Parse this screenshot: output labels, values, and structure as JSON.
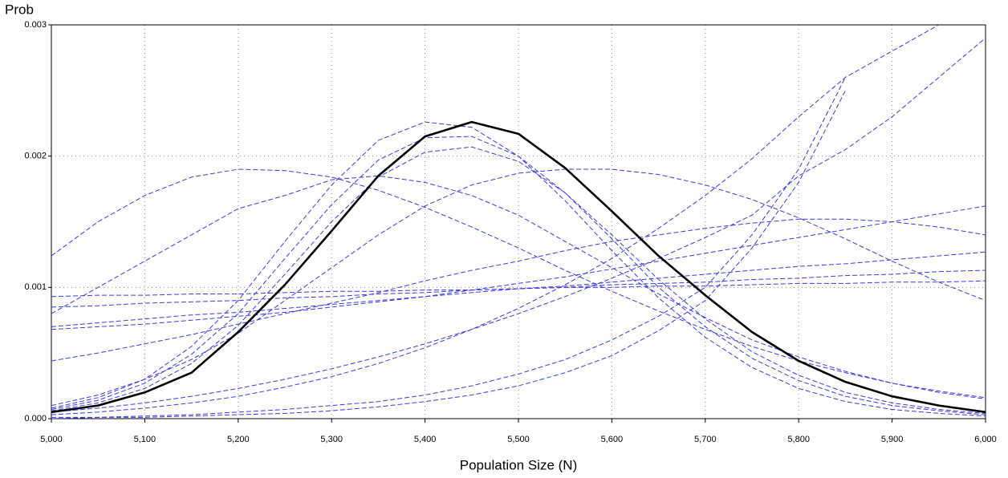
{
  "chart_data": {
    "type": "line",
    "ylabel": "Prob",
    "xlabel": "Population Size (N)",
    "x": [
      5000,
      5050,
      5100,
      5150,
      5200,
      5250,
      5300,
      5350,
      5400,
      5450,
      5500,
      5550,
      5600,
      5650,
      5700,
      5750,
      5800,
      5850,
      5900,
      5950,
      6000
    ],
    "xlim": [
      5000,
      6000
    ],
    "xticks": [
      {
        "value": 5000,
        "label": "5,000"
      },
      {
        "value": 5100,
        "label": "5,100"
      },
      {
        "value": 5200,
        "label": "5,200"
      },
      {
        "value": 5300,
        "label": "5,300"
      },
      {
        "value": 5400,
        "label": "5,400"
      },
      {
        "value": 5500,
        "label": "5,500"
      },
      {
        "value": 5600,
        "label": "5,600"
      },
      {
        "value": 5700,
        "label": "5,700"
      },
      {
        "value": 5800,
        "label": "5,800"
      },
      {
        "value": 5900,
        "label": "5,900"
      },
      {
        "value": 6000,
        "label": "6,000"
      }
    ],
    "ylim": [
      0,
      0.003
    ],
    "yticks": [
      {
        "value": 0,
        "label": "0.000"
      },
      {
        "value": 0.001,
        "label": "0.001"
      },
      {
        "value": 0.002,
        "label": "0.002"
      },
      {
        "value": 0.003,
        "label": "0.003"
      }
    ],
    "grid": true,
    "series": [
      {
        "color": "#3a3ae0",
        "dashed": true,
        "values": [
          0.00124,
          0.0015,
          0.0017,
          0.00184,
          0.0019,
          0.00189,
          0.00184,
          0.00174,
          0.00161,
          0.00146,
          0.0013,
          0.00113,
          0.00097,
          0.00082,
          0.00068,
          0.00055,
          0.00044,
          0.00035,
          0.00027,
          0.00021,
          0.00016
        ]
      },
      {
        "color": "#3a3ae0",
        "dashed": true,
        "values": [
          0.0008,
          0.001,
          0.0012,
          0.0014,
          0.0016,
          0.0017,
          0.00182,
          0.00185,
          0.0018,
          0.0017,
          0.00155,
          0.00135,
          0.00115,
          0.00095,
          0.00077,
          0.0006,
          0.00047,
          0.00036,
          0.00027,
          0.0002,
          0.00015
        ]
      },
      {
        "color": "#3a3ae0",
        "dashed": true,
        "values": [
          0.0001,
          0.00018,
          0.0003,
          0.00045,
          0.00065,
          0.0009,
          0.00115,
          0.0014,
          0.00162,
          0.00178,
          0.00187,
          0.0019,
          0.0019,
          0.00186,
          0.00178,
          0.00167,
          0.00153,
          0.00137,
          0.0012,
          0.00104,
          0.0009
        ]
      },
      {
        "color": "#3a3ae0",
        "dashed": true,
        "values": [
          8e-05,
          0.00016,
          0.0003,
          0.00055,
          0.0009,
          0.00135,
          0.00178,
          0.00212,
          0.00226,
          0.00222,
          0.002,
          0.00166,
          0.00128,
          0.00092,
          0.00062,
          0.00039,
          0.00023,
          0.00013,
          7e-05,
          4e-05,
          2e-05
        ]
      },
      {
        "color": "#3a3ae0",
        "dashed": true,
        "values": [
          7e-05,
          0.00014,
          0.00027,
          0.00049,
          0.0008,
          0.00122,
          0.00163,
          0.00197,
          0.00214,
          0.00215,
          0.002,
          0.00172,
          0.00137,
          0.001,
          0.0007,
          0.00046,
          0.00029,
          0.00017,
          0.0001,
          6e-05,
          3e-05
        ]
      },
      {
        "color": "#3a3ae0",
        "dashed": true,
        "values": [
          6e-05,
          0.00012,
          0.00023,
          0.00042,
          0.00071,
          0.0011,
          0.0015,
          0.00184,
          0.00203,
          0.00207,
          0.00196,
          0.00172,
          0.0014,
          0.00106,
          0.00076,
          0.00051,
          0.00033,
          0.0002,
          0.00012,
          7e-05,
          4e-05
        ]
      },
      {
        "color": "#3a3ae0",
        "dashed": true,
        "values": [
          1e-05,
          1e-05,
          2e-05,
          3e-05,
          5e-05,
          7e-05,
          0.0001,
          0.00013,
          0.00018,
          0.00025,
          0.00034,
          0.00045,
          0.0006,
          0.00078,
          0.001,
          0.0014,
          0.0019,
          0.0026,
          null,
          null,
          null
        ]
      },
      {
        "color": "#3a3ae0",
        "dashed": true,
        "values": [
          0,
          1e-05,
          1e-05,
          2e-05,
          3e-05,
          4e-05,
          6e-05,
          9e-05,
          0.00013,
          0.00018,
          0.00025,
          0.00035,
          0.00048,
          0.00067,
          0.0009,
          0.0013,
          0.0018,
          0.0025,
          null,
          null,
          null
        ]
      },
      {
        "color": "#3a3ae0",
        "dashed": true,
        "values": [
          3e-05,
          5e-05,
          8e-05,
          0.00012,
          0.00017,
          0.00024,
          0.00032,
          0.00042,
          0.00054,
          0.00068,
          0.00084,
          0.00102,
          0.00122,
          0.00145,
          0.0017,
          0.00198,
          0.0023,
          0.0026,
          0.0028,
          0.003,
          null
        ]
      },
      {
        "color": "#3a3ae0",
        "dashed": true,
        "values": [
          5e-05,
          8e-05,
          0.00012,
          0.00017,
          0.00023,
          0.0003,
          0.00038,
          0.00047,
          0.00057,
          0.00068,
          0.0008,
          0.00093,
          0.00107,
          0.00122,
          0.00138,
          0.00155,
          0.00185,
          0.00205,
          0.0023,
          0.0026,
          0.0029
        ]
      },
      {
        "color": "#3a3ae0",
        "dashed": true,
        "values": [
          0.00093,
          0.00094,
          0.00094,
          0.00095,
          0.00095,
          0.00096,
          0.00097,
          0.00097,
          0.00098,
          0.00098,
          0.00099,
          0.001,
          0.001,
          0.00101,
          0.00101,
          0.00102,
          0.00103,
          0.00103,
          0.00104,
          0.00104,
          0.00105
        ]
      },
      {
        "color": "#3a3ae0",
        "dashed": true,
        "values": [
          0.00085,
          0.00086,
          0.00088,
          0.00089,
          0.0009,
          0.00092,
          0.00093,
          0.00095,
          0.00096,
          0.00098,
          0.00099,
          0.001,
          0.00102,
          0.00103,
          0.00104,
          0.00106,
          0.00107,
          0.00109,
          0.0011,
          0.00112,
          0.00113
        ]
      },
      {
        "color": "#3a3ae0",
        "dashed": true,
        "values": [
          0.0007,
          0.00073,
          0.00076,
          0.00079,
          0.00081,
          0.00084,
          0.00087,
          0.0009,
          0.00093,
          0.00096,
          0.00099,
          0.00101,
          0.00104,
          0.00107,
          0.0011,
          0.00113,
          0.00116,
          0.00118,
          0.00121,
          0.00124,
          0.00127
        ]
      },
      {
        "color": "#3a3ae0",
        "dashed": true,
        "values": [
          0.00068,
          0.0007,
          0.00072,
          0.00075,
          0.00078,
          0.00081,
          0.00085,
          0.00089,
          0.00093,
          0.00098,
          0.00103,
          0.00108,
          0.00114,
          0.0012,
          0.00126,
          0.00132,
          0.00138,
          0.00144,
          0.0015,
          0.00156,
          0.00162
        ]
      },
      {
        "color": "#3a3ae0",
        "dashed": true,
        "values": [
          0.00044,
          0.0005,
          0.00057,
          0.00064,
          0.00072,
          0.0008,
          0.00088,
          0.00096,
          0.00105,
          0.00113,
          0.0012,
          0.00128,
          0.00135,
          0.0014,
          0.00145,
          0.00149,
          0.00152,
          0.00152,
          0.0015,
          0.00146,
          0.0014
        ]
      },
      {
        "color": "#000000",
        "dashed": false,
        "values": [
          5e-05,
          0.0001,
          0.0002,
          0.00035,
          0.00066,
          0.00102,
          0.00143,
          0.00185,
          0.00215,
          0.00226,
          0.00217,
          0.00191,
          0.00158,
          0.00124,
          0.00094,
          0.00066,
          0.00044,
          0.00028,
          0.00017,
          0.0001,
          5e-05
        ]
      }
    ]
  }
}
